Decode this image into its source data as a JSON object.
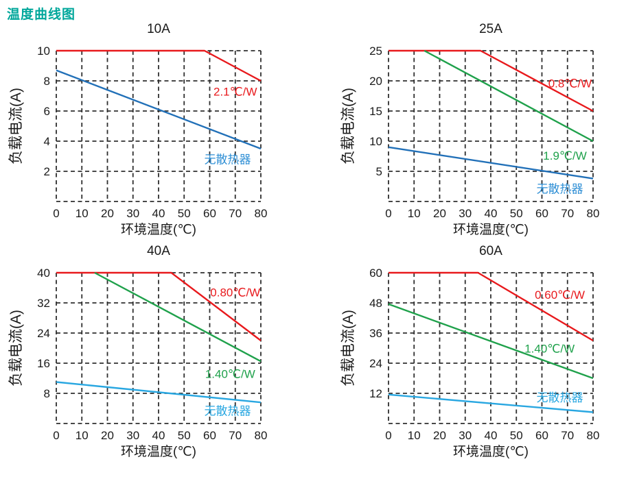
{
  "page": {
    "title": "温度曲线图",
    "title_color": "#00a79b",
    "background": "#ffffff"
  },
  "shared": {
    "xlabel": "环境温度(℃)",
    "ylabel": "负载电流(A)",
    "xlim": [
      0,
      80
    ],
    "x_ticks": [
      0,
      10,
      20,
      30,
      40,
      50,
      60,
      70,
      80
    ],
    "grid": true,
    "grid_color": "#2e2e2e",
    "tick_color": "#1a1a1a"
  },
  "chart_data": [
    {
      "type": "line",
      "title": "10A",
      "xlabel": "环境温度(℃)",
      "ylabel": "负载电流(A)",
      "xlim": [
        0,
        80
      ],
      "ylim": [
        0,
        10
      ],
      "x_ticks": [
        0,
        10,
        20,
        30,
        40,
        50,
        60,
        70,
        80
      ],
      "y_ticks": [
        2,
        4,
        6,
        8,
        10
      ],
      "series": [
        {
          "name": "2.1℃/W",
          "color": "#e8191c",
          "points": [
            [
              0,
              10
            ],
            [
              58,
              10
            ],
            [
              80,
              8
            ]
          ]
        },
        {
          "name": "无散热器",
          "color": "#2170b8",
          "points": [
            [
              0,
              8.7
            ],
            [
              80,
              3.5
            ]
          ]
        }
      ],
      "annotations": [
        {
          "text": "2.1℃/W",
          "x": 70,
          "y": 7.3,
          "color": "#e8191c"
        },
        {
          "text": "无散热器",
          "x": 67,
          "y": 2.8,
          "color": "#2f8fd5"
        }
      ]
    },
    {
      "type": "line",
      "title": "25A",
      "xlabel": "环境温度(℃)",
      "ylabel": "负载电流(A)",
      "xlim": [
        0,
        80
      ],
      "ylim": [
        0,
        25
      ],
      "x_ticks": [
        0,
        10,
        20,
        30,
        40,
        50,
        60,
        70,
        80
      ],
      "y_ticks": [
        5,
        10,
        15,
        20,
        25
      ],
      "series": [
        {
          "name": "0.8℃/W",
          "color": "#e8191c",
          "points": [
            [
              0,
              25
            ],
            [
              36,
              25
            ],
            [
              80,
              15
            ]
          ]
        },
        {
          "name": "1.9℃/W",
          "color": "#1fa14b",
          "points": [
            [
              14,
              25
            ],
            [
              80,
              10
            ]
          ]
        },
        {
          "name": "无散热器",
          "color": "#2170b8",
          "points": [
            [
              0,
              9
            ],
            [
              80,
              3.8
            ]
          ]
        }
      ],
      "annotations": [
        {
          "text": "0.8℃/W",
          "x": 71,
          "y": 19.6,
          "color": "#e8191c"
        },
        {
          "text": "1.9℃/W",
          "x": 69,
          "y": 7.6,
          "color": "#1fa14b"
        },
        {
          "text": "无散热器",
          "x": 67,
          "y": 2.1,
          "color": "#2f8fd5"
        }
      ]
    },
    {
      "type": "line",
      "title": "40A",
      "xlabel": "环境温度(℃)",
      "ylabel": "负载电流(A)",
      "xlim": [
        0,
        80
      ],
      "ylim": [
        0,
        40
      ],
      "x_ticks": [
        0,
        10,
        20,
        30,
        40,
        50,
        60,
        70,
        80
      ],
      "y_ticks": [
        8,
        16,
        24,
        32,
        40
      ],
      "series": [
        {
          "name": "0.80℃/W",
          "color": "#e8191c",
          "points": [
            [
              0,
              40
            ],
            [
              45,
              40
            ],
            [
              80,
              22
            ]
          ]
        },
        {
          "name": "1.40℃/W",
          "color": "#1fa14b",
          "points": [
            [
              15,
              40
            ],
            [
              80,
              16.5
            ]
          ]
        },
        {
          "name": "无散热器",
          "color": "#29a7e1",
          "points": [
            [
              0,
              11
            ],
            [
              80,
              5.6
            ]
          ]
        }
      ],
      "annotations": [
        {
          "text": "0.80℃/W",
          "x": 70,
          "y": 34.8,
          "color": "#e8191c"
        },
        {
          "text": "1.40℃/W",
          "x": 68,
          "y": 13.2,
          "color": "#1fa14b"
        },
        {
          "text": "无散热器",
          "x": 67,
          "y": 3.4,
          "color": "#29a7e1"
        }
      ]
    },
    {
      "type": "line",
      "title": "60A",
      "xlabel": "环境温度(℃)",
      "ylabel": "负载电流(A)",
      "xlim": [
        0,
        80
      ],
      "ylim": [
        0,
        60
      ],
      "x_ticks": [
        0,
        10,
        20,
        30,
        40,
        50,
        60,
        70,
        80
      ],
      "y_ticks": [
        12,
        24,
        36,
        48,
        60
      ],
      "series": [
        {
          "name": "0.60℃/W",
          "color": "#e8191c",
          "points": [
            [
              0,
              60
            ],
            [
              35,
              60
            ],
            [
              80,
              33
            ]
          ]
        },
        {
          "name": "1.40℃/W",
          "color": "#1fa14b",
          "points": [
            [
              0,
              47.5
            ],
            [
              80,
              18
            ]
          ]
        },
        {
          "name": "无散热器",
          "color": "#29a7e1",
          "points": [
            [
              0,
              11.5
            ],
            [
              80,
              4.5
            ]
          ]
        }
      ],
      "annotations": [
        {
          "text": "0.60℃/W",
          "x": 67,
          "y": 51.3,
          "color": "#e8191c"
        },
        {
          "text": "1.40℃/W",
          "x": 63,
          "y": 29.8,
          "color": "#1fa14b"
        },
        {
          "text": "无散热器",
          "x": 67,
          "y": 10.4,
          "color": "#29a7e1"
        }
      ]
    }
  ]
}
